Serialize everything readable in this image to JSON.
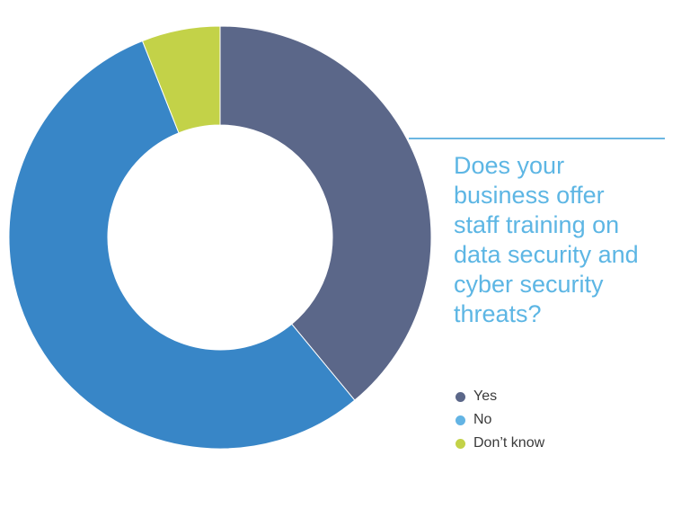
{
  "chart_data": {
    "type": "pie",
    "donut": true,
    "title": "Does your\nbusiness offer\nstaff training on\ndata security and\ncyber security\nthreats?",
    "categories": [
      "Yes",
      "No",
      "Don’t know"
    ],
    "values": [
      39,
      55,
      6
    ],
    "colors": [
      "#5b6789",
      "#3886c7",
      "#c3d248"
    ],
    "legend_placement": "bottom-right"
  },
  "legend": {
    "items": [
      {
        "label": "Yes",
        "color": "#5b6789"
      },
      {
        "label": "No",
        "color": "#63b4e4"
      },
      {
        "label": "Don’t know",
        "color": "#c3d248"
      }
    ]
  },
  "colors": {
    "accent": "#5db6e4"
  }
}
